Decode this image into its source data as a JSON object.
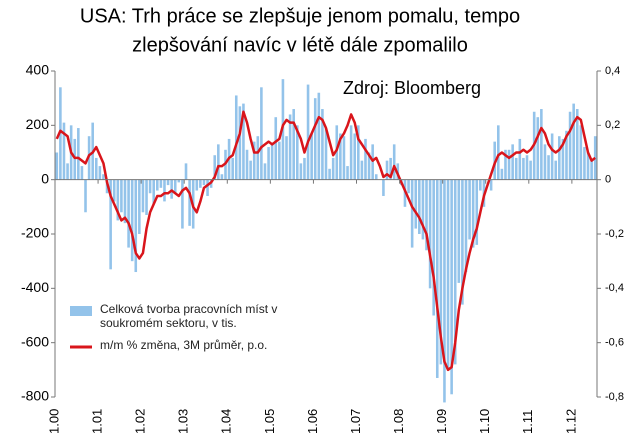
{
  "chart_data": {
    "type": "bar-line",
    "title": "USA: Trh práce se zlepšuje jenom pomalu, tempo",
    "subtitle": "zlepšování navíc v létě dále zpomalilo",
    "annotation": "Zdroj: Bloomberg",
    "categories": [
      "1.00",
      null,
      null,
      null,
      null,
      null,
      null,
      null,
      null,
      null,
      null,
      null,
      "1.01",
      null,
      null,
      null,
      null,
      null,
      null,
      null,
      null,
      null,
      null,
      null,
      "1.02",
      null,
      null,
      null,
      null,
      null,
      null,
      null,
      null,
      null,
      null,
      null,
      "1.03",
      null,
      null,
      null,
      null,
      null,
      null,
      null,
      null,
      null,
      null,
      null,
      "1.04",
      null,
      null,
      null,
      null,
      null,
      null,
      null,
      null,
      null,
      null,
      null,
      "1.05",
      null,
      null,
      null,
      null,
      null,
      null,
      null,
      null,
      null,
      null,
      null,
      "1.06",
      null,
      null,
      null,
      null,
      null,
      null,
      null,
      null,
      null,
      null,
      null,
      "1.07",
      null,
      null,
      null,
      null,
      null,
      null,
      null,
      null,
      null,
      null,
      null,
      "1.08",
      null,
      null,
      null,
      null,
      null,
      null,
      null,
      null,
      null,
      null,
      null,
      "1.09",
      null,
      null,
      null,
      null,
      null,
      null,
      null,
      null,
      null,
      null,
      null,
      "1.10",
      null,
      null,
      null,
      null,
      null,
      null,
      null,
      null,
      null,
      null,
      null,
      "1.11",
      null,
      null,
      null,
      null,
      null,
      null,
      null,
      null,
      null,
      null,
      null,
      "1.12",
      null,
      null,
      null,
      null,
      null,
      null
    ],
    "series": [
      {
        "name": "Celková tvorba pracovních míst v soukromém sektoru, v tis.",
        "color": "#93c3ea",
        "kind": "bar",
        "values": [
          100,
          340,
          210,
          60,
          200,
          150,
          190,
          50,
          -120,
          160,
          210,
          80,
          50,
          20,
          -50,
          -330,
          -80,
          -150,
          -120,
          -160,
          -250,
          -300,
          -340,
          -200,
          -120,
          -130,
          -50,
          -90,
          -40,
          -30,
          -80,
          -20,
          -70,
          -50,
          -10,
          -180,
          60,
          -170,
          -180,
          -40,
          -30,
          -20,
          -60,
          -30,
          90,
          130,
          20,
          110,
          150,
          80,
          310,
          270,
          280,
          110,
          70,
          140,
          160,
          340,
          60,
          120,
          130,
          230,
          140,
          370,
          160,
          240,
          260,
          200,
          60,
          80,
          350,
          170,
          300,
          320,
          260,
          190,
          40,
          80,
          200,
          170,
          160,
          50,
          200,
          170,
          200,
          70,
          150,
          100,
          130,
          20,
          0,
          -60,
          70,
          80,
          130,
          60,
          -20,
          -100,
          -50,
          -250,
          -180,
          -200,
          -220,
          -260,
          -400,
          -500,
          -730,
          -680,
          -820,
          -700,
          -790,
          -680,
          -380,
          -460,
          -340,
          -220,
          -250,
          -240,
          -40,
          -100,
          0,
          -40,
          140,
          200,
          40,
          110,
          110,
          130,
          80,
          150,
          80,
          90,
          70,
          250,
          230,
          260,
          130,
          90,
          170,
          70,
          160,
          150,
          180,
          250,
          280,
          260,
          200,
          120,
          100,
          70,
          160
        ]
      },
      {
        "name": "m/m % změna, 3M průměr, p.o.",
        "color": "#d9151b",
        "kind": "line",
        "axis": "y2",
        "values": [
          0.15,
          0.18,
          0.17,
          0.16,
          0.1,
          0.08,
          0.08,
          0.07,
          0.06,
          0.09,
          0.1,
          0.12,
          0.09,
          0.06,
          -0.01,
          -0.06,
          -0.09,
          -0.12,
          -0.15,
          -0.14,
          -0.16,
          -0.2,
          -0.27,
          -0.29,
          -0.27,
          -0.18,
          -0.12,
          -0.09,
          -0.06,
          -0.06,
          -0.05,
          -0.05,
          -0.04,
          -0.05,
          -0.06,
          -0.04,
          -0.03,
          -0.05,
          -0.1,
          -0.12,
          -0.08,
          -0.03,
          -0.02,
          -0.01,
          0.01,
          0.05,
          0.05,
          0.06,
          0.08,
          0.09,
          0.13,
          0.17,
          0.25,
          0.21,
          0.15,
          0.1,
          0.1,
          0.12,
          0.13,
          0.14,
          0.13,
          0.14,
          0.15,
          0.2,
          0.22,
          0.21,
          0.21,
          0.18,
          0.15,
          0.1,
          0.14,
          0.17,
          0.2,
          0.23,
          0.22,
          0.19,
          0.14,
          0.09,
          0.11,
          0.15,
          0.17,
          0.2,
          0.24,
          0.21,
          0.15,
          0.13,
          0.11,
          0.09,
          0.07,
          0.08,
          0.05,
          0.01,
          0.02,
          0.01,
          0.05,
          0.02,
          -0.01,
          -0.04,
          -0.07,
          -0.1,
          -0.12,
          -0.14,
          -0.17,
          -0.2,
          -0.28,
          -0.36,
          -0.47,
          -0.58,
          -0.67,
          -0.7,
          -0.69,
          -0.6,
          -0.48,
          -0.4,
          -0.33,
          -0.27,
          -0.22,
          -0.18,
          -0.12,
          -0.06,
          -0.02,
          0.02,
          0.06,
          0.09,
          0.1,
          0.09,
          0.08,
          0.09,
          0.1,
          0.1,
          0.11,
          0.1,
          0.11,
          0.13,
          0.16,
          0.19,
          0.17,
          0.13,
          0.11,
          0.1,
          0.11,
          0.13,
          0.16,
          0.18,
          0.21,
          0.23,
          0.22,
          0.16,
          0.1,
          0.07,
          0.08
        ]
      }
    ],
    "ylim": [
      -800,
      400
    ],
    "yticks": [
      -800,
      -600,
      -400,
      -200,
      0,
      200,
      400
    ],
    "y2lim": [
      -0.8,
      0.4
    ],
    "y2ticks": [
      {
        "value": -0.8,
        "label": "-0,8"
      },
      {
        "value": -0.6,
        "label": "-0,6"
      },
      {
        "value": -0.4,
        "label": "-0,4"
      },
      {
        "value": -0.2,
        "label": "-0,2"
      },
      0,
      {
        "value": 0.2,
        "label": "0,2"
      },
      {
        "value": 0.4,
        "label": "0,4"
      }
    ],
    "grid": false,
    "legend": "lower-left"
  }
}
